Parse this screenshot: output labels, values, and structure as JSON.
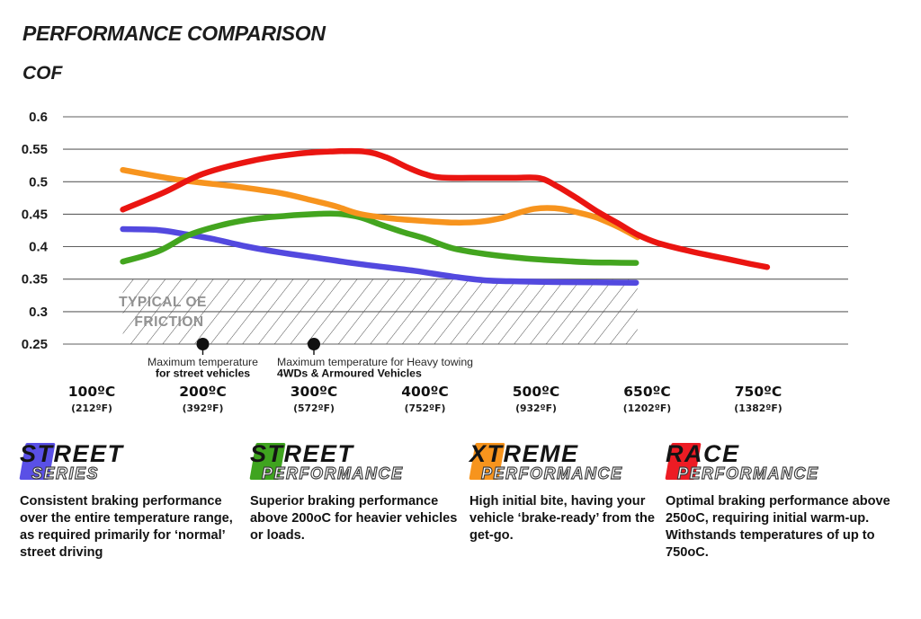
{
  "header": {
    "title": "PERFORMANCE COMPARISON",
    "ylabel": "COF"
  },
  "chart_data": {
    "type": "line",
    "title": "PERFORMANCE COMPARISON",
    "ylabel": "COF",
    "ylim": [
      0.25,
      0.6
    ],
    "grid": "horizontal",
    "yticks": [
      {
        "label": "0.6",
        "value": 0.6
      },
      {
        "label": "0.55",
        "value": 0.55
      },
      {
        "label": "0.5",
        "value": 0.5
      },
      {
        "label": "0.45",
        "value": 0.45
      },
      {
        "label": "0.4",
        "value": 0.4
      },
      {
        "label": "0.35",
        "value": 0.35
      },
      {
        "label": "0.3",
        "value": 0.3
      },
      {
        "label": "0.25",
        "value": 0.25
      }
    ],
    "xticks": [
      {
        "temp_c": 100,
        "main": "100ºC",
        "sub": "(212ºF)"
      },
      {
        "temp_c": 200,
        "main": "200ºC",
        "sub": "(392ºF)"
      },
      {
        "temp_c": 300,
        "main": "300ºC",
        "sub": "(572ºF)"
      },
      {
        "temp_c": 400,
        "main": "400ºC",
        "sub": "(752ºF)"
      },
      {
        "temp_c": 500,
        "main": "500ºC",
        "sub": "(932ºF)"
      },
      {
        "temp_c": 650,
        "main": "650ºC",
        "sub": "(1202ºF)"
      },
      {
        "temp_c": 750,
        "main": "750ºC",
        "sub": "(1382ºF)"
      }
    ],
    "series": [
      {
        "name": "Street Series",
        "color": "#5349df",
        "points": [
          [
            128,
            0.427
          ],
          [
            160,
            0.4255
          ],
          [
            187,
            0.4185
          ],
          [
            210,
            0.4115
          ],
          [
            240,
            0.4
          ],
          [
            270,
            0.391
          ],
          [
            300,
            0.3835
          ],
          [
            340,
            0.3735
          ],
          [
            390,
            0.363
          ],
          [
            425,
            0.354
          ],
          [
            455,
            0.348
          ],
          [
            485,
            0.3465
          ],
          [
            530,
            0.3455
          ],
          [
            580,
            0.345
          ],
          [
            635,
            0.3445
          ]
        ]
      },
      {
        "name": "Street Performance",
        "color": "#43a51f",
        "points": [
          [
            128,
            0.377
          ],
          [
            160,
            0.393
          ],
          [
            187,
            0.4175
          ],
          [
            215,
            0.4325
          ],
          [
            245,
            0.4425
          ],
          [
            275,
            0.4475
          ],
          [
            305,
            0.4505
          ],
          [
            322,
            0.4505
          ],
          [
            341,
            0.4455
          ],
          [
            360,
            0.434
          ],
          [
            380,
            0.4225
          ],
          [
            400,
            0.4125
          ],
          [
            425,
            0.3975
          ],
          [
            455,
            0.3885
          ],
          [
            490,
            0.382
          ],
          [
            530,
            0.3785
          ],
          [
            570,
            0.376
          ],
          [
            600,
            0.3755
          ],
          [
            635,
            0.375
          ]
        ]
      },
      {
        "name": "Xtreme Performance",
        "color": "#f7941e",
        "points": [
          [
            128,
            0.518
          ],
          [
            180,
            0.5025
          ],
          [
            230,
            0.4925
          ],
          [
            270,
            0.4825
          ],
          [
            298,
            0.4715
          ],
          [
            320,
            0.462
          ],
          [
            341,
            0.4505
          ],
          [
            370,
            0.4435
          ],
          [
            400,
            0.4395
          ],
          [
            428,
            0.437
          ],
          [
            450,
            0.4385
          ],
          [
            470,
            0.4445
          ],
          [
            485,
            0.4525
          ],
          [
            498,
            0.458
          ],
          [
            515,
            0.4595
          ],
          [
            535,
            0.458
          ],
          [
            557,
            0.4525
          ],
          [
            580,
            0.4455
          ],
          [
            605,
            0.4335
          ],
          [
            622,
            0.424
          ],
          [
            637,
            0.4145
          ]
        ]
      },
      {
        "name": "Race Performance",
        "color": "#ea1511",
        "points": [
          [
            128,
            0.457
          ],
          [
            165,
            0.4835
          ],
          [
            200,
            0.512
          ],
          [
            245,
            0.5325
          ],
          [
            285,
            0.543
          ],
          [
            315,
            0.5465
          ],
          [
            345,
            0.5465
          ],
          [
            365,
            0.5375
          ],
          [
            385,
            0.5215
          ],
          [
            400,
            0.5115
          ],
          [
            415,
            0.5065
          ],
          [
            450,
            0.506
          ],
          [
            480,
            0.506
          ],
          [
            505,
            0.5055
          ],
          [
            530,
            0.492
          ],
          [
            558,
            0.4725
          ],
          [
            585,
            0.4525
          ],
          [
            610,
            0.4365
          ],
          [
            637,
            0.4185
          ],
          [
            660,
            0.4055
          ],
          [
            690,
            0.3925
          ],
          [
            715,
            0.3835
          ],
          [
            740,
            0.3745
          ],
          [
            758,
            0.3685
          ]
        ]
      }
    ],
    "oe_region": {
      "label_lines": [
        "TYPICAL OE",
        "FRICTION"
      ],
      "value_from": 0.25,
      "value_to": 0.35,
      "temp_from": 128,
      "temp_to": 637
    },
    "annotations": [
      {
        "temp_c": 200,
        "value": 0.25,
        "align": "center",
        "dx": 0,
        "lines": [
          "Maximum temperature",
          "for street vehicles"
        ]
      },
      {
        "temp_c": 300,
        "value": 0.25,
        "align": "left",
        "dx": -41,
        "lines": [
          "Maximum temperature for Heavy towing",
          "4WDs & Armoured Vehicles"
        ]
      }
    ]
  },
  "legend": {
    "items": [
      {
        "line1": "STREET",
        "line2": "SERIES",
        "color": "#5a50e6",
        "description": "Consistent braking performance over the entire temperature range, as required primarily for ‘normal’ street driving"
      },
      {
        "line1": "STREET",
        "line2": "PERFORMANCE",
        "color": "#3fa41f",
        "description": "Superior braking performance above 200oC for heavier vehicles or loads."
      },
      {
        "line1": "XTREME",
        "line2": "PERFORMANCE",
        "color": "#f7941d",
        "description": "High initial bite, having your vehicle ‘brake-ready’ from the get-go."
      },
      {
        "line1": "RACE",
        "line2": "PERFORMANCE",
        "color": "#ed1c24",
        "description": "Optimal braking performance above 250oC, requiring initial warm-up. Withstands temperatures of up to 750oC."
      }
    ]
  }
}
